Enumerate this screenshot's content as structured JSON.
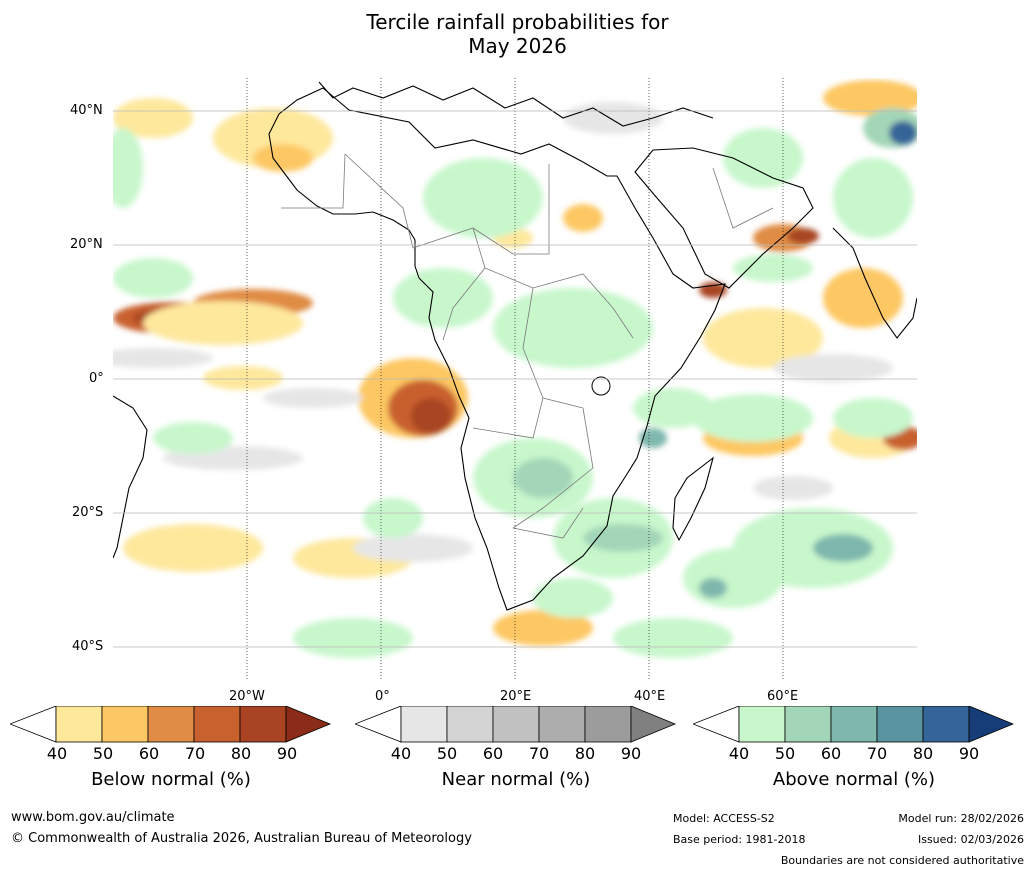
{
  "title": {
    "line1": "Tercile rainfall probabilities for",
    "line2": "May 2026"
  },
  "map": {
    "lat_labels": [
      "40°N",
      "20°N",
      "0°",
      "20°S",
      "40°S"
    ],
    "lon_labels": [
      "20°W",
      "0°",
      "20°E",
      "40°E",
      "60°E"
    ]
  },
  "legends": [
    {
      "title": "Below normal (%)",
      "ticks": [
        "40",
        "50",
        "60",
        "70",
        "80",
        "90"
      ],
      "colors": [
        "#ffffff",
        "#fee89c",
        "#fdc863",
        "#e08c45",
        "#c8612e",
        "#a84424",
        "#8a2c17"
      ]
    },
    {
      "title": "Near normal (%)",
      "ticks": [
        "40",
        "50",
        "60",
        "70",
        "80",
        "90"
      ],
      "colors": [
        "#ffffff",
        "#e6e6e6",
        "#d4d4d4",
        "#c1c1c1",
        "#adadad",
        "#9c9c9c",
        "#808080"
      ]
    },
    {
      "title": "Above normal (%)",
      "ticks": [
        "40",
        "50",
        "60",
        "70",
        "80",
        "90"
      ],
      "colors": [
        "#ffffff",
        "#c8f7cc",
        "#a3d6b8",
        "#7fb7ad",
        "#5a94a0",
        "#346598",
        "#173d78"
      ]
    }
  ],
  "footer": {
    "website": "www.bom.gov.au/climate",
    "copyright": "© Commonwealth of Australia 2026, Australian Bureau of Meteorology",
    "model": "Model: ACCESS-S2",
    "base_period": "Base period: 1981-2018",
    "model_run": "Model run: 28/02/2026",
    "issued": "Issued: 02/03/2026",
    "disclaimer": "Boundaries are not considered authoritative"
  }
}
